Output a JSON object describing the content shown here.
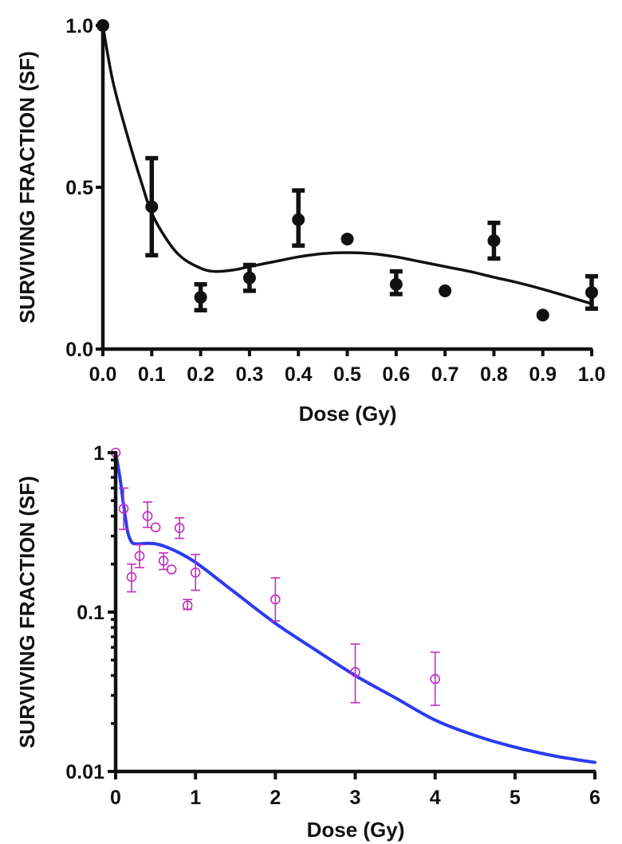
{
  "chart_data": [
    {
      "type": "scatter",
      "title": "",
      "xlabel": "Dose (Gy)",
      "ylabel": "SURVIVING FRACTION (SF)",
      "xscale": "linear",
      "yscale": "linear",
      "xlim": [
        0,
        1.0
      ],
      "ylim": [
        0,
        1.0
      ],
      "xticks": [
        0.0,
        0.1,
        0.2,
        0.3,
        0.4,
        0.5,
        0.6,
        0.7,
        0.8,
        0.9,
        1.0
      ],
      "xtick_labels": [
        "0.0",
        "0.1",
        "0.2",
        "0.3",
        "0.4",
        "0.5",
        "0.6",
        "0.7",
        "0.8",
        "0.9",
        "1.0"
      ],
      "yticks": [
        0.0,
        0.5,
        1.0
      ],
      "ytick_labels": [
        "0.0",
        "0.5",
        "1.0"
      ],
      "grid": false,
      "legend": "none",
      "colors": {
        "points": "#111111",
        "fit": "#111111",
        "axis": "#111111"
      },
      "series": [
        {
          "name": "measured",
          "marker": "filled-circle",
          "x": [
            0.0,
            0.1,
            0.2,
            0.3,
            0.4,
            0.5,
            0.6,
            0.7,
            0.8,
            0.9,
            1.0
          ],
          "y": [
            1.0,
            0.44,
            0.16,
            0.22,
            0.4,
            0.34,
            0.2,
            0.18,
            0.335,
            0.105,
            0.175
          ],
          "err_low": [
            null,
            0.29,
            0.12,
            0.18,
            0.32,
            null,
            0.17,
            null,
            0.28,
            null,
            0.125
          ],
          "err_high": [
            null,
            0.59,
            0.2,
            0.26,
            0.49,
            null,
            0.24,
            null,
            0.39,
            null,
            0.225
          ]
        },
        {
          "name": "fit",
          "line": "solid",
          "x": [
            0.0,
            0.02,
            0.05,
            0.08,
            0.1,
            0.13,
            0.16,
            0.2,
            0.23,
            0.27,
            0.3,
            0.35,
            0.4,
            0.45,
            0.5,
            0.55,
            0.6,
            0.65,
            0.7,
            0.75,
            0.8,
            0.85,
            0.9,
            0.95,
            1.0
          ],
          "y": [
            1.0,
            0.83,
            0.66,
            0.51,
            0.42,
            0.34,
            0.285,
            0.25,
            0.24,
            0.245,
            0.255,
            0.27,
            0.285,
            0.295,
            0.298,
            0.295,
            0.285,
            0.27,
            0.255,
            0.24,
            0.222,
            0.205,
            0.185,
            0.163,
            0.14
          ]
        }
      ]
    },
    {
      "type": "scatter",
      "title": "",
      "xlabel": "Dose (Gy)",
      "ylabel": "SURVIVING FRACTION (SF)",
      "xscale": "linear",
      "yscale": "log",
      "xlim": [
        0,
        6
      ],
      "ylim": [
        0.01,
        1
      ],
      "xticks": [
        0,
        1,
        2,
        3,
        4,
        5,
        6
      ],
      "xtick_labels": [
        "0",
        "1",
        "2",
        "3",
        "4",
        "5",
        "6"
      ],
      "yticks": [
        0.01,
        0.1,
        1
      ],
      "ytick_labels": [
        "0.01",
        "0.1",
        "1"
      ],
      "grid": false,
      "legend": "none",
      "colors": {
        "points": "#c42bc4",
        "fit": "#2b3bf0",
        "axis": "#111111"
      },
      "series": [
        {
          "name": "measured",
          "marker": "open-circle",
          "x": [
            0.0,
            0.1,
            0.2,
            0.3,
            0.4,
            0.5,
            0.6,
            0.7,
            0.8,
            0.9,
            1.0,
            2.0,
            3.0,
            4.0
          ],
          "y": [
            1.0,
            0.445,
            0.166,
            0.225,
            0.4,
            0.34,
            0.21,
            0.185,
            0.337,
            0.11,
            0.177,
            0.12,
            0.042,
            0.038
          ],
          "err_low": [
            null,
            0.33,
            0.134,
            0.19,
            0.34,
            null,
            0.185,
            null,
            0.29,
            0.104,
            0.137,
            0.088,
            0.027,
            0.026
          ],
          "err_high": [
            null,
            0.6,
            0.2,
            0.265,
            0.49,
            null,
            0.235,
            null,
            0.39,
            0.12,
            0.23,
            0.164,
            0.063,
            0.056
          ]
        },
        {
          "name": "fit",
          "line": "solid",
          "x": [
            0.0,
            0.05,
            0.1,
            0.15,
            0.2,
            0.25,
            0.3,
            0.4,
            0.5,
            0.6,
            0.8,
            1.0,
            1.25,
            1.5,
            2.0,
            2.5,
            3.0,
            3.5,
            4.0,
            4.5,
            5.0,
            5.5,
            6.0
          ],
          "y": [
            1.0,
            0.72,
            0.47,
            0.32,
            0.275,
            0.268,
            0.268,
            0.27,
            0.268,
            0.26,
            0.235,
            0.205,
            0.165,
            0.132,
            0.085,
            0.058,
            0.04,
            0.029,
            0.021,
            0.0168,
            0.0142,
            0.0125,
            0.0114
          ]
        }
      ]
    }
  ]
}
